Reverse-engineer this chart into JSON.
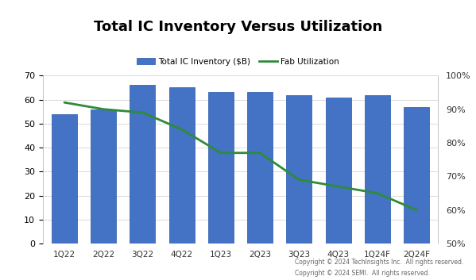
{
  "categories": [
    "1Q22",
    "2Q22",
    "3Q22",
    "4Q22",
    "1Q23",
    "2Q23",
    "3Q23",
    "4Q23",
    "1Q24F",
    "2Q24F"
  ],
  "bar_values": [
    54,
    56,
    66,
    65,
    63,
    63,
    62,
    61,
    62,
    57
  ],
  "line_values": [
    92,
    90,
    89,
    84,
    77,
    77,
    69,
    67,
    65,
    60
  ],
  "bar_color": "#4472C4",
  "bar_edge_color": "#2255AA",
  "line_color": "#2E8B3A",
  "title": "Total IC Inventory Versus Utilization",
  "title_fontsize": 13,
  "legend_label_bar": "Total IC Inventory ($B)",
  "legend_label_line": "Fab Utilization",
  "ylim_left": [
    0,
    70
  ],
  "ylim_right": [
    50,
    100
  ],
  "yticks_left": [
    0,
    10,
    20,
    30,
    40,
    50,
    60,
    70
  ],
  "yticks_right": [
    50,
    60,
    70,
    80,
    90,
    100
  ],
  "ytick_labels_right": [
    "50%",
    "60%",
    "70%",
    "80%",
    "90%",
    "100%"
  ],
  "background_color": "#FFFFFF",
  "copyright_line1": "Copyright © 2024 TechInsights Inc.  All rights reserved.",
  "copyright_line2": "Copyright © 2024 SEMI.  All rights reserved."
}
